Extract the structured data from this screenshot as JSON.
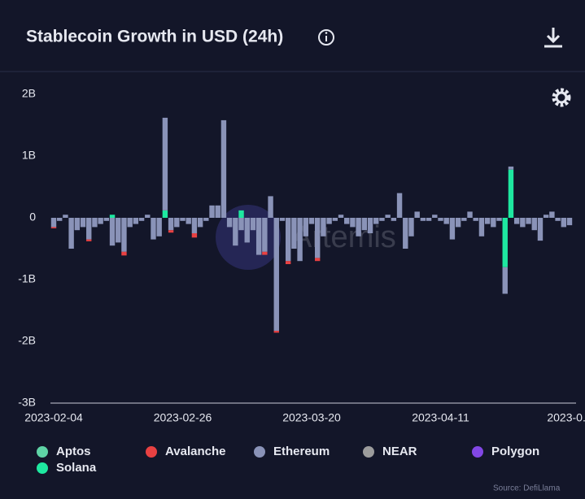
{
  "header": {
    "title": "Stablecoin Growth in USD (24h)"
  },
  "chart_data": {
    "type": "stacked_bar",
    "watermark": "Artemis",
    "source": "Source: DefiLlama",
    "categories": [
      "2023-02-04",
      null,
      null,
      null,
      null,
      null,
      null,
      null,
      null,
      null,
      null,
      null,
      null,
      null,
      null,
      null,
      null,
      null,
      null,
      null,
      null,
      null,
      "2023-02-26",
      null,
      null,
      null,
      null,
      null,
      null,
      null,
      null,
      null,
      null,
      null,
      null,
      null,
      null,
      null,
      null,
      null,
      null,
      null,
      null,
      null,
      "2023-03-20",
      null,
      null,
      null,
      null,
      null,
      null,
      null,
      null,
      null,
      null,
      null,
      null,
      null,
      null,
      null,
      null,
      null,
      null,
      null,
      null,
      null,
      "2023-04-11",
      null,
      null,
      null,
      null,
      null,
      null,
      null,
      null,
      null,
      null,
      null,
      null,
      null,
      null,
      null,
      null,
      null,
      null,
      null,
      null,
      null,
      "2023-0..."
    ],
    "series": [
      {
        "name": "Aptos",
        "color": "#5fd4a6",
        "values": [
          0,
          0,
          0,
          0,
          0,
          0,
          0,
          0,
          0,
          0,
          0,
          0,
          0,
          0,
          0,
          0,
          0,
          0,
          0,
          0,
          0,
          0,
          0,
          0,
          0,
          0,
          0,
          0,
          0,
          0,
          0,
          0,
          0,
          0,
          0,
          0,
          0,
          0,
          0,
          0,
          0,
          0,
          0,
          0,
          0,
          0,
          0,
          0,
          0,
          0,
          0,
          0,
          0,
          0,
          0,
          0,
          0,
          0,
          0,
          0,
          0,
          0,
          0,
          0,
          0,
          0,
          0,
          0,
          0,
          0,
          0,
          0,
          0,
          0,
          0,
          0,
          0,
          0,
          0,
          0,
          0,
          0,
          0,
          0,
          0,
          0,
          0,
          0,
          0
        ]
      },
      {
        "name": "Avalanche",
        "color": "#e84142",
        "values": [
          -20000000.0,
          0,
          0,
          0,
          0,
          0,
          -30000000.0,
          0,
          0,
          0,
          0,
          0,
          -60000000.0,
          0,
          0,
          0,
          0,
          0,
          0,
          0,
          -40000000.0,
          0,
          0,
          0,
          -70000000.0,
          0,
          0,
          0,
          0,
          0,
          0,
          0,
          0,
          0,
          0,
          0,
          -50000000.0,
          0,
          -30000000.0,
          0,
          -50000000.0,
          0,
          0,
          0,
          0,
          -50000000.0,
          0,
          0,
          0,
          0,
          0,
          0,
          0,
          0,
          0,
          0,
          0,
          0,
          0,
          0,
          0,
          0,
          0,
          0,
          0,
          0,
          0,
          0,
          0,
          0,
          0,
          0,
          0,
          0,
          0,
          0,
          0,
          0,
          0,
          0,
          0,
          0,
          0,
          0,
          0,
          0,
          0,
          0,
          0
        ]
      },
      {
        "name": "Ethereum",
        "color": "#8a93b8",
        "values": [
          -150000000.0,
          -50000000.0,
          50000000.0,
          -500000000.0,
          -200000000.0,
          -150000000.0,
          -350000000.0,
          -150000000.0,
          -100000000.0,
          -50000000.0,
          -450000000.0,
          -400000000.0,
          -550000000.0,
          -150000000.0,
          -100000000.0,
          -50000000.0,
          50000000.0,
          -350000000.0,
          -300000000.0,
          1500000000.0,
          -200000000.0,
          -150000000.0,
          -50000000.0,
          -100000000.0,
          -250000000.0,
          -150000000.0,
          -50000000.0,
          200000000.0,
          200000000.0,
          1580000000.0,
          -150000000.0,
          -450000000.0,
          -200000000.0,
          -400000000.0,
          -200000000.0,
          -600000000.0,
          -550000000.0,
          350000000.0,
          -1830000000.0,
          -50000000.0,
          -700000000.0,
          -500000000.0,
          -700000000.0,
          -300000000.0,
          -100000000.0,
          -650000000.0,
          -300000000.0,
          -100000000.0,
          -50000000.0,
          50000000.0,
          -100000000.0,
          -150000000.0,
          -300000000.0,
          -200000000.0,
          -250000000.0,
          -100000000.0,
          -50000000.0,
          50000000.0,
          -50000000.0,
          400000000.0,
          -500000000.0,
          -300000000.0,
          100000000.0,
          -50000000.0,
          -50000000.0,
          50000000.0,
          -50000000.0,
          -100000000.0,
          -350000000.0,
          -150000000.0,
          -50000000.0,
          100000000.0,
          -50000000.0,
          -300000000.0,
          -100000000.0,
          -150000000.0,
          -50000000.0,
          -430000000.0,
          50000000.0,
          -100000000.0,
          -150000000.0,
          -100000000.0,
          -200000000.0,
          -370000000.0,
          50000000.0,
          100000000.0,
          -50000000.0,
          -150000000.0,
          -120000000.0
        ]
      },
      {
        "name": "NEAR",
        "color": "#9c9c9c",
        "values": [
          0,
          0,
          0,
          0,
          0,
          0,
          0,
          0,
          0,
          0,
          0,
          0,
          0,
          0,
          0,
          0,
          0,
          0,
          0,
          0,
          0,
          0,
          0,
          0,
          0,
          0,
          0,
          0,
          0,
          0,
          0,
          0,
          0,
          0,
          0,
          0,
          0,
          0,
          0,
          0,
          0,
          0,
          0,
          0,
          0,
          0,
          0,
          0,
          0,
          0,
          0,
          0,
          0,
          0,
          0,
          0,
          0,
          0,
          0,
          0,
          0,
          0,
          0,
          0,
          0,
          0,
          0,
          0,
          0,
          0,
          0,
          0,
          0,
          0,
          0,
          0,
          0,
          0,
          0,
          0,
          0,
          0,
          0,
          0,
          0,
          0,
          0,
          0,
          0
        ]
      },
      {
        "name": "Polygon",
        "color": "#8247e5",
        "values": [
          0,
          0,
          0,
          0,
          0,
          0,
          0,
          0,
          0,
          0,
          0,
          0,
          0,
          0,
          0,
          0,
          0,
          0,
          0,
          0,
          0,
          0,
          0,
          0,
          0,
          0,
          0,
          0,
          0,
          0,
          0,
          0,
          0,
          0,
          0,
          0,
          0,
          0,
          0,
          0,
          0,
          0,
          0,
          0,
          0,
          0,
          0,
          0,
          0,
          0,
          0,
          0,
          0,
          0,
          0,
          0,
          0,
          0,
          0,
          0,
          0,
          0,
          0,
          0,
          0,
          0,
          0,
          0,
          0,
          0,
          0,
          0,
          0,
          0,
          0,
          0,
          0,
          0,
          0,
          0,
          0,
          0,
          0,
          0,
          0,
          0,
          0,
          0,
          0
        ]
      },
      {
        "name": "Solana",
        "color": "#1ee8a0",
        "values": [
          0,
          0,
          0,
          0,
          0,
          0,
          0,
          0,
          0,
          0,
          50000000.0,
          0,
          0,
          0,
          0,
          0,
          0,
          0,
          0,
          120000000.0,
          0,
          0,
          0,
          0,
          0,
          0,
          0,
          0,
          0,
          0,
          0,
          0,
          120000000.0,
          0,
          0,
          0,
          0,
          0,
          0,
          0,
          0,
          0,
          0,
          0,
          0,
          0,
          0,
          0,
          0,
          0,
          0,
          0,
          0,
          0,
          0,
          0,
          0,
          0,
          0,
          0,
          0,
          0,
          0,
          0,
          0,
          0,
          0,
          0,
          0,
          0,
          0,
          0,
          0,
          0,
          0,
          0,
          0,
          -800000000.0,
          780000000.0,
          0,
          0,
          0,
          0,
          0,
          0,
          0,
          0,
          0,
          0
        ]
      }
    ],
    "ylim": [
      -3000000000.0,
      2000000000.0
    ],
    "yticks": [
      {
        "value": -3000000000.0,
        "label": "-3B"
      },
      {
        "value": -2000000000.0,
        "label": "-2B"
      },
      {
        "value": -1000000000.0,
        "label": "-1B"
      },
      {
        "value": 0,
        "label": "0"
      },
      {
        "value": 1000000000.0,
        "label": "1B"
      },
      {
        "value": 2000000000.0,
        "label": "2B"
      }
    ]
  }
}
